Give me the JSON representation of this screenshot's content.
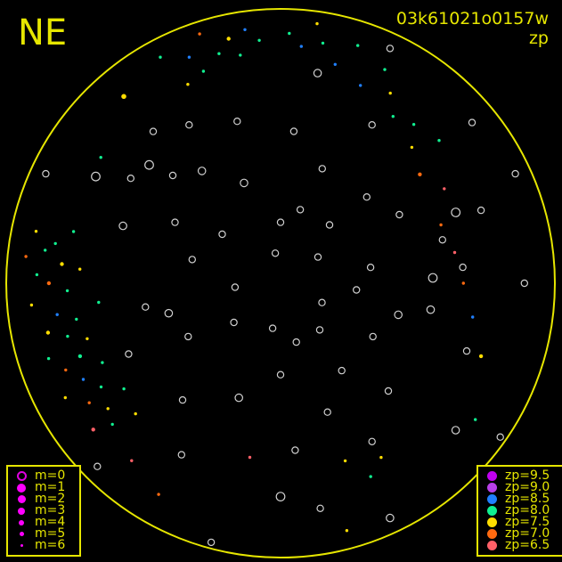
{
  "direction_label": "NE",
  "frame_id": "03k61021o0157w",
  "color_key": "zp",
  "chart_data": {
    "type": "scatter",
    "projection": "all-sky polar (zenith at center, horizon at rim)",
    "axis": "azimuth / zenith distance (deg)",
    "horizon_color": "#e6e600",
    "no_zp_color": "#ffffff",
    "magnitude_legend": [
      {
        "label": "m=0",
        "m": 0
      },
      {
        "label": "m=1",
        "m": 1
      },
      {
        "label": "m=2",
        "m": 2
      },
      {
        "label": "m=3",
        "m": 3
      },
      {
        "label": "m=4",
        "m": 4
      },
      {
        "label": "m=5",
        "m": 5
      },
      {
        "label": "m=6",
        "m": 6
      }
    ],
    "zp_legend": [
      {
        "label": "zp=9.5",
        "zp": 9.5,
        "color": "#c000f0"
      },
      {
        "label": "zp=9.0",
        "zp": 9.0,
        "color": "#b840e8"
      },
      {
        "label": "zp=8.5",
        "zp": 8.5,
        "color": "#2080ff"
      },
      {
        "label": "zp=8.0",
        "zp": 8.0,
        "color": "#10f090"
      },
      {
        "label": "zp=7.5",
        "zp": 7.5,
        "color": "#ffdd00"
      },
      {
        "label": "zp=7.0",
        "zp": 7.0,
        "color": "#ff6a10"
      },
      {
        "label": "zp=6.5",
        "zp": 6.5,
        "color": "#ff6068"
      }
    ],
    "points": [
      [
        80,
        75,
        4,
        8.0
      ],
      [
        82,
        78,
        4,
        8.0
      ],
      [
        85,
        72,
        3,
        7.5
      ],
      [
        88,
        80,
        4,
        8.0
      ],
      [
        90,
        76,
        3,
        7.0
      ],
      [
        92,
        70,
        4,
        8.0
      ],
      [
        95,
        82,
        4,
        7.5
      ],
      [
        98,
        74,
        4,
        8.5
      ],
      [
        100,
        68,
        4,
        8.0
      ],
      [
        102,
        78,
        3,
        7.5
      ],
      [
        104,
        72,
        4,
        8.0
      ],
      [
        106,
        66,
        4,
        7.5
      ],
      [
        108,
        80,
        4,
        8.0
      ],
      [
        110,
        70,
        3,
        8.0
      ],
      [
        112,
        76,
        4,
        7.0
      ],
      [
        114,
        64,
        4,
        8.0
      ],
      [
        116,
        72,
        4,
        8.5
      ],
      [
        118,
        80,
        4,
        7.5
      ],
      [
        120,
        68,
        4,
        8.0
      ],
      [
        122,
        74,
        4,
        7.0
      ],
      [
        124,
        62,
        4,
        8.0
      ],
      [
        126,
        70,
        4,
        7.5
      ],
      [
        128,
        78,
        3,
        6.5
      ],
      [
        96,
        60,
        4,
        8.0
      ],
      [
        86,
        66,
        4,
        7.5
      ],
      [
        84,
        84,
        4,
        7.0
      ],
      [
        78,
        82,
        4,
        7.5
      ],
      [
        76,
        70,
        4,
        8.0
      ],
      [
        130,
        72,
        4,
        8.0
      ],
      [
        132,
        64,
        4,
        7.5
      ],
      [
        5,
        80,
        4,
        8.0
      ],
      [
        8,
        84,
        4,
        8.5
      ],
      [
        10,
        76,
        4,
        8.0
      ],
      [
        12,
        82,
        3,
        7.5
      ],
      [
        15,
        78,
        4,
        8.0
      ],
      [
        18,
        86,
        4,
        7.0
      ],
      [
        20,
        74,
        4,
        8.0
      ],
      [
        22,
        80,
        4,
        8.5
      ],
      [
        25,
        72,
        4,
        7.5
      ],
      [
        28,
        84,
        4,
        8.0
      ],
      [
        -2,
        82,
        4,
        8.0
      ],
      [
        -5,
        78,
        4,
        8.5
      ],
      [
        -8,
        86,
        4,
        7.5
      ],
      [
        -10,
        80,
        4,
        8.0
      ],
      [
        -14,
        74,
        4,
        8.5
      ],
      [
        -18,
        82,
        4,
        8.0
      ],
      [
        -22,
        70,
        4,
        8.5
      ],
      [
        -26,
        78,
        4,
        8.0
      ],
      [
        -30,
        72,
        4,
        7.5
      ],
      [
        -34,
        66,
        4,
        8.0
      ],
      [
        -40,
        68,
        4,
        8.0
      ],
      [
        -44,
        62,
        4,
        7.5
      ],
      [
        -48,
        70,
        4,
        8.0
      ],
      [
        -52,
        58,
        3,
        7.0
      ],
      [
        -60,
        62,
        4,
        6.5
      ],
      [
        -70,
        56,
        4,
        7.0
      ],
      [
        -80,
        58,
        4,
        6.5
      ],
      [
        -90,
        60,
        4,
        7.0
      ],
      [
        -100,
        64,
        4,
        8.5
      ],
      [
        -110,
        70,
        3,
        7.5
      ],
      [
        -150,
        66,
        4,
        7.5
      ],
      [
        -155,
        70,
        4,
        8.0
      ],
      [
        -160,
        62,
        4,
        7.5
      ],
      [
        170,
        58,
        4,
        6.5
      ],
      [
        150,
        80,
        4,
        7.0
      ],
      [
        40,
        80,
        2,
        7.5
      ],
      [
        55,
        72,
        4,
        8.0
      ],
      [
        140,
        76,
        4,
        6.5
      ],
      [
        -125,
        78,
        4,
        8.0
      ],
      [
        -165,
        84,
        4,
        7.5
      ],
      [
        30,
        60,
        3,
        null
      ],
      [
        45,
        50,
        3,
        null
      ],
      [
        60,
        40,
        3,
        null
      ],
      [
        70,
        55,
        2,
        null
      ],
      [
        100,
        45,
        3,
        null
      ],
      [
        120,
        35,
        3,
        null
      ],
      [
        140,
        50,
        3,
        null
      ],
      [
        160,
        40,
        2,
        null
      ],
      [
        180,
        30,
        3,
        null
      ],
      [
        200,
        45,
        3,
        null
      ],
      [
        220,
        20,
        3,
        null
      ],
      [
        240,
        35,
        3,
        null
      ],
      [
        260,
        50,
        2,
        null
      ],
      [
        280,
        30,
        3,
        null
      ],
      [
        300,
        45,
        3,
        null
      ],
      [
        320,
        25,
        3,
        null
      ],
      [
        340,
        40,
        3,
        null
      ],
      [
        0,
        20,
        3,
        null
      ],
      [
        20,
        35,
        2,
        null
      ],
      [
        50,
        25,
        3,
        null
      ],
      [
        75,
        30,
        3,
        null
      ],
      [
        95,
        15,
        3,
        null
      ],
      [
        130,
        20,
        3,
        null
      ],
      [
        170,
        15,
        3,
        null
      ],
      [
        210,
        60,
        3,
        null
      ],
      [
        230,
        75,
        2,
        null
      ],
      [
        250,
        65,
        3,
        null
      ],
      [
        270,
        80,
        3,
        null
      ],
      [
        290,
        70,
        3,
        null
      ],
      [
        310,
        82,
        3,
        null
      ],
      [
        330,
        60,
        3,
        null
      ],
      [
        350,
        70,
        2,
        null
      ],
      [
        40,
        65,
        3,
        null
      ],
      [
        65,
        85,
        3,
        null
      ],
      [
        150,
        65,
        3,
        null
      ],
      [
        190,
        75,
        3,
        null
      ],
      [
        205,
        85,
        2,
        null
      ],
      [
        225,
        50,
        3,
        null
      ],
      [
        245,
        15,
        3,
        null
      ],
      [
        265,
        25,
        3,
        null
      ],
      [
        285,
        55,
        3,
        null
      ],
      [
        305,
        15,
        3,
        null
      ],
      [
        335,
        85,
        3,
        null
      ],
      [
        355,
        50,
        3,
        null
      ],
      [
        15,
        55,
        3,
        null
      ],
      [
        35,
        45,
        2,
        null
      ],
      [
        55,
        60,
        3,
        null
      ],
      [
        115,
        55,
        3,
        null
      ],
      [
        135,
        85,
        3,
        null
      ],
      [
        165,
        88,
        3,
        null
      ],
      [
        185,
        55,
        3,
        null
      ],
      [
        195,
        20,
        3,
        null
      ],
      [
        215,
        35,
        3,
        null
      ],
      [
        235,
        88,
        3,
        null
      ],
      [
        255,
        40,
        2,
        null
      ],
      [
        275,
        60,
        3,
        null
      ],
      [
        295,
        85,
        3,
        null
      ],
      [
        315,
        40,
        3,
        null
      ],
      [
        345,
        25,
        3,
        null
      ],
      [
        10,
        10,
        3,
        null
      ],
      [
        60,
        70,
        1,
        null
      ],
      [
        48,
        58,
        1,
        null
      ],
      [
        272,
        50,
        1,
        null
      ],
      [
        292,
        62,
        1,
        null
      ],
      [
        105,
        38,
        2,
        null
      ],
      [
        180,
        70,
        1,
        null
      ]
    ]
  }
}
